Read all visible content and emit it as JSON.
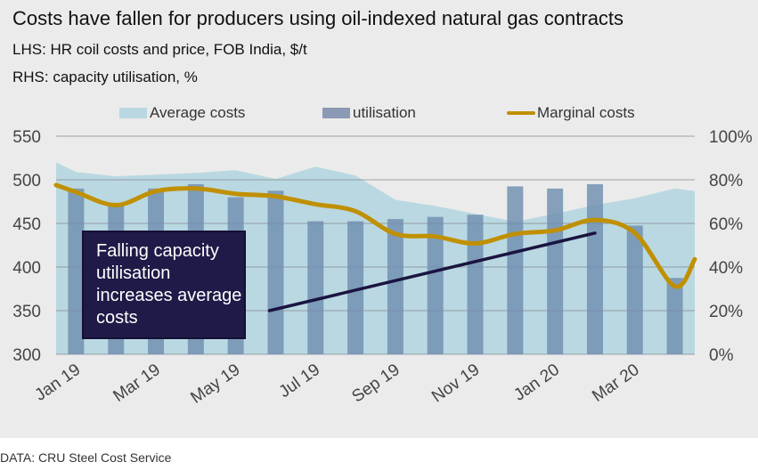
{
  "title": "Costs have fallen for producers using oil-indexed natural gas contracts",
  "subtitles": [
    "LHS: HR coil costs and price, FOB India, $/t",
    "RHS: capacity utilisation, %"
  ],
  "footer": "DATA: CRU Steel Cost Service",
  "annotation": {
    "text": "Falling capacity utilisation increases average costs",
    "color": "#1f1a47"
  },
  "legend": [
    {
      "name": "Average costs",
      "type": "area",
      "color": "#bad8e1"
    },
    {
      "name": "utilisation",
      "type": "bar",
      "color": "#8c99b5"
    },
    {
      "name": "Marginal costs",
      "type": "line",
      "color": "#c09000"
    }
  ],
  "chart_data": {
    "type": "bar",
    "title": "Costs have fallen for producers using oil-indexed natural gas contracts",
    "categories": [
      "Jan 19",
      "Feb 19",
      "Mar 19",
      "Apr 19",
      "May 19",
      "Jun 19",
      "Jul 19",
      "Aug 19",
      "Sep 19",
      "Oct 19",
      "Nov 19",
      "Dec 19",
      "Jan 20",
      "Feb 20",
      "Mar 20",
      "Apr 20"
    ],
    "x_tick_labels": [
      "Jan 19",
      "Mar 19",
      "May 19",
      "Jul 19",
      "Sep 19",
      "Nov 19",
      "Jan 20",
      "Mar 20"
    ],
    "ylabel_left": "HR coil costs and price, FOB India, $/t",
    "ylabel_right": "capacity utilisation, %",
    "ylim_left": [
      300,
      550
    ],
    "yticks_left": [
      300,
      350,
      400,
      450,
      500,
      550
    ],
    "ylim_right": [
      0,
      100
    ],
    "yticks_right": [
      "0%",
      "20%",
      "40%",
      "60%",
      "80%",
      "100%"
    ],
    "grid": true,
    "legend_position": "top",
    "series": [
      {
        "name": "Average costs",
        "type": "area",
        "axis": "left",
        "color": "#bad8e1",
        "values": [
          509,
          504,
          506,
          508,
          511,
          501,
          515,
          505,
          477,
          470,
          461,
          452,
          461,
          471,
          479,
          490
        ],
        "start_value": 520,
        "end_value": 487
      },
      {
        "name": "utilisation",
        "type": "bar",
        "axis": "right",
        "color": "#6f8fb0",
        "values": [
          76,
          69,
          76,
          78,
          72,
          75,
          61,
          61,
          62,
          63,
          64,
          77,
          76,
          78,
          59,
          35
        ]
      },
      {
        "name": "Marginal costs",
        "type": "line",
        "axis": "left",
        "color": "#c09000",
        "values": [
          486,
          471,
          487,
          490,
          484,
          481,
          472,
          464,
          438,
          435,
          427,
          438,
          442,
          454,
          439,
          378
        ],
        "start_value": 494,
        "end_value": 409
      }
    ],
    "annotations": [
      {
        "text": "Falling capacity utilisation increases average costs",
        "trend_line": {
          "from": {
            "category": "Jun 19",
            "value": 350
          },
          "to": {
            "category": "Feb 20",
            "value": 439
          }
        }
      }
    ]
  }
}
